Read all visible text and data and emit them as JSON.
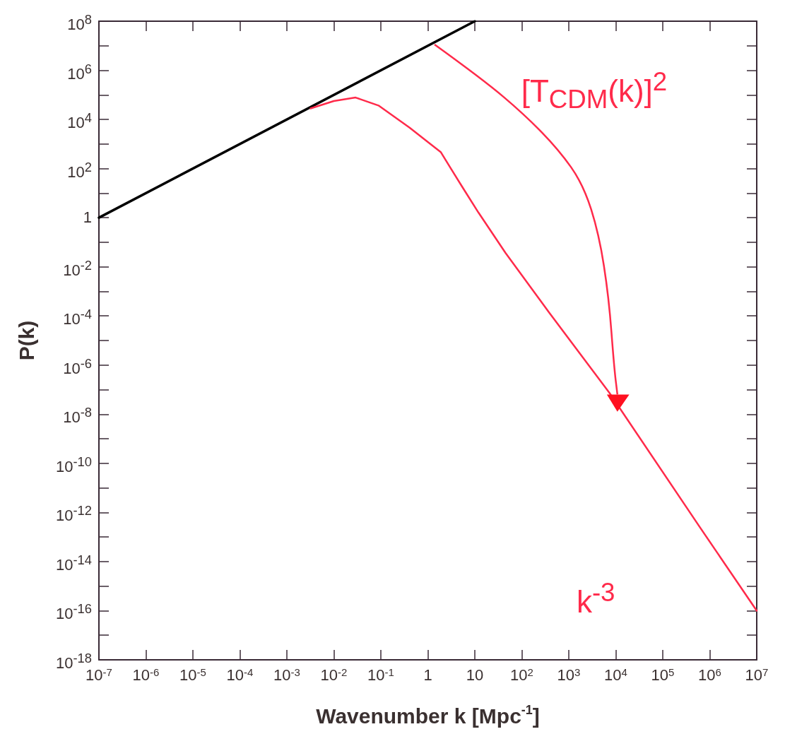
{
  "chart_data": {
    "type": "line",
    "xlabel": "Wavenumber k [Mpc$^{-1}$]",
    "ylabel": "P(k)",
    "log": "xy",
    "marker": "none",
    "line_style": "solid",
    "xlim": [
      1e-07,
      10000000.0
    ],
    "ylim": [
      1e-18,
      100000000.0
    ],
    "xticks": [
      {
        "value": 1e-07,
        "label": "10$^{-7}$"
      },
      {
        "value": 1e-06,
        "label": "10$^{-6}$"
      },
      {
        "value": 1e-05,
        "label": "10$^{-5}$"
      },
      {
        "value": 0.0001,
        "label": "10$^{-4}$"
      },
      {
        "value": 0.001,
        "label": "10$^{-3}$"
      },
      {
        "value": 0.01,
        "label": "10$^{-2}$"
      },
      {
        "value": 0.1,
        "label": "10$^{-1}$"
      },
      1,
      10,
      {
        "value": 100,
        "label": "10$^{2}$"
      },
      {
        "value": 1000,
        "label": "10$^{3}$"
      },
      {
        "value": 10000.0,
        "label": "10$^{4}$"
      },
      {
        "value": 100000.0,
        "label": "10$^{5}$"
      },
      {
        "value": 1000000.0,
        "label": "10$^{6}$"
      },
      {
        "value": 10000000.0,
        "label": "10$^{7}$"
      }
    ],
    "yticks": [
      {
        "value": 1e-18,
        "label": "10$^{-18}$"
      },
      {
        "value": 1e-17,
        "label": null
      },
      {
        "value": 1e-16,
        "label": "10$^{-16}$"
      },
      {
        "value": 1e-15,
        "label": null
      },
      {
        "value": 1e-14,
        "label": "10$^{-14}$"
      },
      {
        "value": 1e-13,
        "label": null
      },
      {
        "value": 1e-12,
        "label": "10$^{-12}$"
      },
      {
        "value": 1e-11,
        "label": null
      },
      {
        "value": 1e-10,
        "label": "10$^{-10}$"
      },
      {
        "value": 1e-09,
        "label": null
      },
      {
        "value": 1e-08,
        "label": "10$^{-8}$"
      },
      {
        "value": 1e-07,
        "label": null
      },
      {
        "value": 1e-06,
        "label": "10$^{-6}$"
      },
      {
        "value": 1e-05,
        "label": null
      },
      {
        "value": 0.0001,
        "label": "10$^{-4}$"
      },
      {
        "value": 0.001,
        "label": null
      },
      {
        "value": 0.01,
        "label": "10$^{-2}$"
      },
      {
        "value": 0.1,
        "label": null
      },
      1,
      {
        "value": 10,
        "label": null
      },
      {
        "value": 100,
        "label": "10$^{2}$"
      },
      {
        "value": 1000,
        "label": null
      },
      {
        "value": 10000.0,
        "label": "10$^{4}$"
      },
      {
        "value": 100000.0,
        "label": null
      },
      {
        "value": 1000000.0,
        "label": "10$^{6}$"
      },
      {
        "value": 10000000.0,
        "label": null
      },
      {
        "value": 100000000.0,
        "label": "10$^{8}$"
      }
    ],
    "annotations": [
      "[T$_{CDM}$(k)]$^{2}$",
      "k$^{-3}$"
    ],
    "series": [
      {
        "color": "#000000",
        "x": [
          1e-07,
          10
        ],
        "values": [
          1,
          100000000.0
        ]
      },
      {
        "color": "#ff2a4a",
        "x": [
          0.0032,
          0.01,
          0.029,
          0.089,
          0.41,
          1,
          1.9,
          3,
          5.4,
          12,
          45,
          390,
          7400,
          600000,
          10000000.0
        ],
        "values": [
          28000,
          56000,
          78000,
          37000,
          4600,
          1200,
          460,
          110,
          18,
          1.6,
          0.037,
          0.00013,
          7.2e-08,
          2.7e-13,
          1e-16
        ]
      }
    ]
  }
}
